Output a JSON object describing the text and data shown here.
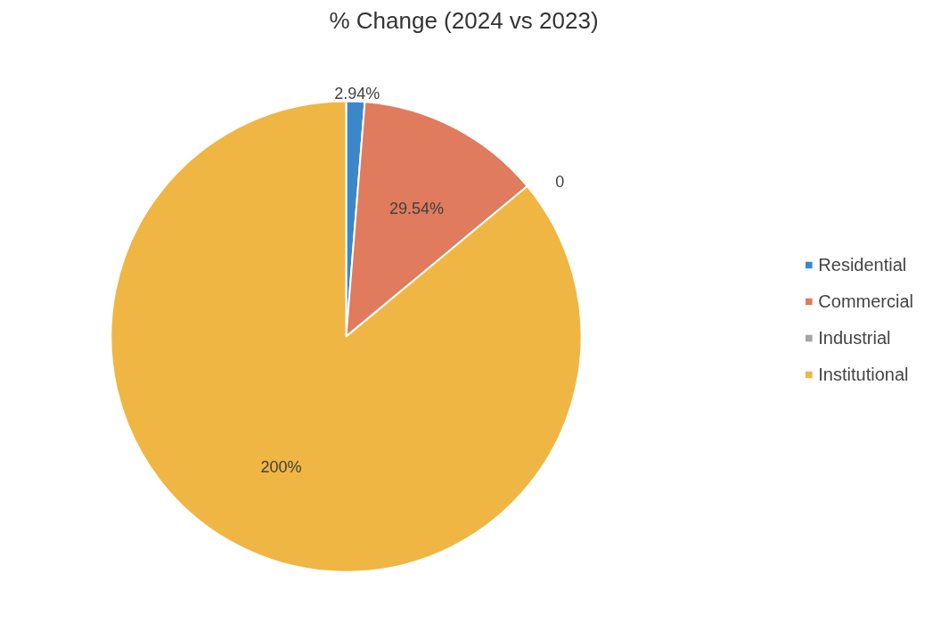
{
  "chart_data": {
    "type": "pie",
    "title": "% Change (2024 vs 2023)",
    "categories": [
      "Residential",
      "Commercial",
      "Industrial",
      "Institutional"
    ],
    "values": [
      2.94,
      29.54,
      0,
      200
    ],
    "colors": [
      "#3b87c9",
      "#e07b5e",
      "#a5a5a5",
      "#f0b643"
    ],
    "value_labels": [
      "2.94%",
      "29.54%",
      "0",
      "200%"
    ],
    "legend": "right"
  }
}
